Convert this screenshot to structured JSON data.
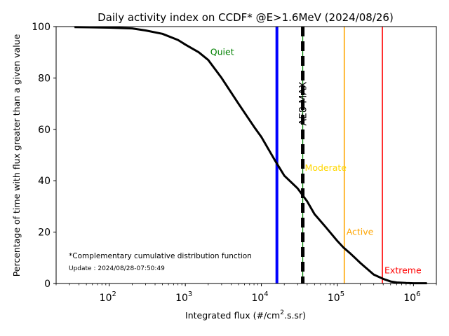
{
  "chart_data": {
    "type": "line",
    "title": "Daily activity index on CCDF* @E>1.6MeV (2024/08/26)",
    "xlabel_main": "Integrated flux (#/cm",
    "xlabel_sup": "2",
    "xlabel_tail": ".s.sr)",
    "ylabel": "Percentage of time with flux greater than a given value",
    "x_scale": "log",
    "xlim": [
      20,
      2000000
    ],
    "ylim": [
      0,
      100
    ],
    "x_ticks": [
      {
        "value": 100,
        "base": "10",
        "exp": "2"
      },
      {
        "value": 1000,
        "base": "10",
        "exp": "3"
      },
      {
        "value": 10000,
        "base": "10",
        "exp": "4"
      },
      {
        "value": 100000,
        "base": "10",
        "exp": "5"
      },
      {
        "value": 1000000,
        "base": "10",
        "exp": "6"
      }
    ],
    "y_ticks": [
      0,
      20,
      40,
      60,
      80,
      100
    ],
    "grid": false,
    "series": [
      {
        "color": "#000000",
        "x": [
          35,
          100,
          200,
          300,
          500,
          800,
          1000,
          1500,
          2000,
          3000,
          5000,
          8000,
          10000,
          15000,
          20000,
          30000,
          40000,
          50000,
          70000,
          100000,
          120000,
          150000,
          200000,
          250000,
          300000,
          400000,
          500000,
          600000,
          800000,
          1000000,
          1500000
        ],
        "y": [
          99.8,
          99.6,
          99.3,
          98.5,
          97.2,
          94.8,
          93.0,
          90.0,
          87.0,
          80.0,
          70.0,
          61.0,
          57.0,
          48.0,
          42.0,
          37.0,
          32.0,
          27.0,
          22.0,
          16.5,
          14.0,
          11.5,
          8.0,
          5.5,
          3.5,
          1.8,
          0.8,
          0.4,
          0.2,
          0.1,
          0.1
        ]
      }
    ],
    "reference_lines": [
      {
        "x": 16000,
        "color": "#0000ff",
        "label": "",
        "style": "solid",
        "width": "thick"
      },
      {
        "x": 35000,
        "color": "#000000",
        "label": "AE8 MAX",
        "style": "dashed",
        "width": "thick",
        "inner_color": "#008000"
      },
      {
        "x": 123000,
        "color": "#ffa500",
        "label": "Active",
        "style": "solid",
        "width": "thin"
      },
      {
        "x": 390000,
        "color": "#ff0000",
        "label": "Extreme",
        "style": "solid",
        "width": "thin"
      }
    ],
    "annotations": [
      {
        "text": "Quiet",
        "x": 2000,
        "y": 90,
        "color": "#008000"
      },
      {
        "text": "Moderate",
        "x": 35000,
        "y": 45,
        "color": "#ffd700"
      },
      {
        "text": "Active",
        "x": 123000,
        "y": 20,
        "color": "#ffa500"
      },
      {
        "text": "Extreme",
        "x": 390000,
        "y": 5,
        "color": "#ff0000"
      }
    ],
    "footnote": "*Complementary cumulative distribution function",
    "update_text": "Update : 2024/08/28-07:50:49"
  }
}
